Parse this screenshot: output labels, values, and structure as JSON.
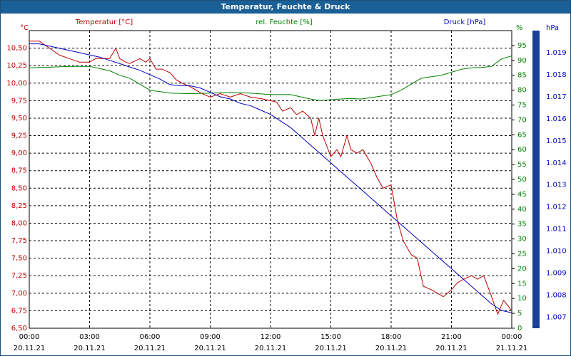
{
  "chart_data": {
    "type": "line",
    "title": "Temperatur, Feuchte & Druck",
    "left_axis": {
      "unit": "°C",
      "ylim": [
        6.5,
        10.75
      ],
      "ticks": [
        "10,50",
        "10,25",
        "10,00",
        "9,75",
        "9,50",
        "9,25",
        "9,00",
        "8,75",
        "8,50",
        "8,25",
        "8,00",
        "7,75",
        "7,50",
        "7,25",
        "7,00",
        "6,75",
        "6,50"
      ],
      "color": "#c00000"
    },
    "mid_axis": {
      "unit": "%",
      "ylim": [
        0,
        100
      ],
      "ticks": [
        "95",
        "90",
        "85",
        "80",
        "75",
        "70",
        "65",
        "60",
        "55",
        "50",
        "45",
        "40",
        "35",
        "30",
        "25",
        "20",
        "15",
        "10",
        "5",
        "0"
      ],
      "color": "#008000"
    },
    "right_axis": {
      "unit": "hPa",
      "ylim": [
        1006.5,
        1020.0
      ],
      "ticks": [
        "1.019",
        "1.018",
        "1.017",
        "1.016",
        "1.015",
        "1.014",
        "1.013",
        "1.012",
        "1.011",
        "1.010",
        "1.009",
        "1.008",
        "1.007"
      ],
      "color": "#0000c0"
    },
    "x_ticks": [
      {
        "time": "00:00",
        "date": "20.11.21"
      },
      {
        "time": "03:00",
        "date": "20.11.21"
      },
      {
        "time": "06:00",
        "date": "20.11.21"
      },
      {
        "time": "09:00",
        "date": "20.11.21"
      },
      {
        "time": "12:00",
        "date": "20.11.21"
      },
      {
        "time": "15:00",
        "date": "20.11.21"
      },
      {
        "time": "18:00",
        "date": "20.11.21"
      },
      {
        "time": "21:00",
        "date": "20.11.21"
      },
      {
        "time": "00:00",
        "date": "21.11.21"
      }
    ],
    "x_range_hours": [
      0,
      24
    ],
    "series": [
      {
        "name": "Temperatur [°C]",
        "axis": "left",
        "color": "#c00000",
        "x": [
          0,
          0.5,
          1,
          1.5,
          2,
          2.5,
          3,
          3.3,
          3.6,
          4,
          4.3,
          4.5,
          4.8,
          5,
          5.5,
          5.8,
          6,
          6.3,
          6.6,
          7,
          7.3,
          7.6,
          8,
          8.3,
          8.6,
          9,
          9.5,
          10,
          10.5,
          11,
          11.5,
          12,
          12.3,
          12.6,
          13,
          13.3,
          13.6,
          14,
          14.2,
          14.4,
          14.6,
          14.8,
          15,
          15.3,
          15.5,
          15.8,
          16,
          16.3,
          16.6,
          17,
          17.3,
          17.6,
          18,
          18.3,
          18.6,
          19,
          19.3,
          19.6,
          20,
          20.3,
          20.6,
          21,
          21.3,
          21.6,
          22,
          22.3,
          22.6,
          23,
          23.3,
          23.6,
          24
        ],
        "y": [
          10.6,
          10.6,
          10.5,
          10.4,
          10.35,
          10.3,
          10.3,
          10.35,
          10.35,
          10.35,
          10.5,
          10.35,
          10.3,
          10.28,
          10.35,
          10.3,
          10.35,
          10.2,
          10.2,
          10.15,
          10.05,
          10.0,
          9.95,
          9.9,
          9.85,
          9.8,
          9.85,
          9.8,
          9.85,
          9.8,
          9.78,
          9.75,
          9.73,
          9.6,
          9.65,
          9.55,
          9.6,
          9.5,
          9.25,
          9.5,
          9.25,
          9.1,
          8.95,
          9.05,
          8.95,
          9.25,
          9.05,
          9.0,
          9.05,
          8.85,
          8.65,
          8.5,
          8.55,
          8.05,
          7.75,
          7.55,
          7.5,
          7.1,
          7.05,
          7.0,
          6.95,
          7.05,
          7.15,
          7.2,
          7.25,
          7.2,
          7.25,
          6.95,
          6.7,
          6.9,
          6.75
        ]
      },
      {
        "name": "rel. Feuchte [%]",
        "axis": "mid",
        "color": "#008000",
        "x": [
          0,
          1,
          2,
          3,
          4,
          4.5,
          5,
          5.5,
          6,
          7,
          8,
          9,
          10,
          11,
          12,
          13,
          14,
          14.5,
          15,
          15.5,
          16,
          16.5,
          17,
          17.5,
          18,
          18.5,
          19,
          19.5,
          20,
          20.5,
          21,
          21.5,
          22,
          22.5,
          23,
          23.5,
          24
        ],
        "y": [
          87.5,
          87.7,
          88,
          88,
          86.5,
          85,
          84,
          82,
          80,
          79,
          78.8,
          79,
          79.2,
          79,
          78.5,
          78.5,
          77,
          76.5,
          76.8,
          77,
          77.2,
          77,
          77.5,
          78,
          78.5,
          80,
          82,
          84,
          84.5,
          85,
          86,
          87,
          87.5,
          87.6,
          88,
          90.5,
          91.5
        ]
      },
      {
        "name": "Druck [hPa]",
        "axis": "right",
        "color": "#0000c0",
        "x": [
          0,
          0.5,
          1,
          1.5,
          2,
          2.5,
          3,
          3.5,
          4,
          4.5,
          5,
          5.5,
          6,
          6.5,
          7,
          7.5,
          8,
          8.5,
          9,
          9.5,
          10,
          10.5,
          11,
          11.5,
          12,
          12.5,
          13,
          13.5,
          14,
          14.5,
          15,
          15.5,
          16,
          16.5,
          17,
          17.5,
          18,
          18.5,
          19,
          19.5,
          20,
          20.5,
          21,
          21.5,
          22,
          22.5,
          23,
          23.5,
          24
        ],
        "y": [
          1019.4,
          1019.4,
          1019.3,
          1019.2,
          1019.1,
          1019.0,
          1018.9,
          1018.8,
          1018.65,
          1018.5,
          1018.35,
          1018.2,
          1018.0,
          1017.8,
          1017.55,
          1017.5,
          1017.5,
          1017.4,
          1017.2,
          1017.0,
          1016.9,
          1016.7,
          1016.6,
          1016.4,
          1016.2,
          1015.9,
          1015.6,
          1015.2,
          1014.8,
          1014.4,
          1014.0,
          1013.6,
          1013.2,
          1012.8,
          1012.4,
          1012.0,
          1011.6,
          1011.2,
          1010.8,
          1010.4,
          1010.0,
          1009.6,
          1009.2,
          1008.8,
          1008.4,
          1008.0,
          1007.6,
          1007.3,
          1007.2
        ]
      }
    ],
    "grid": true,
    "legend": "top"
  }
}
